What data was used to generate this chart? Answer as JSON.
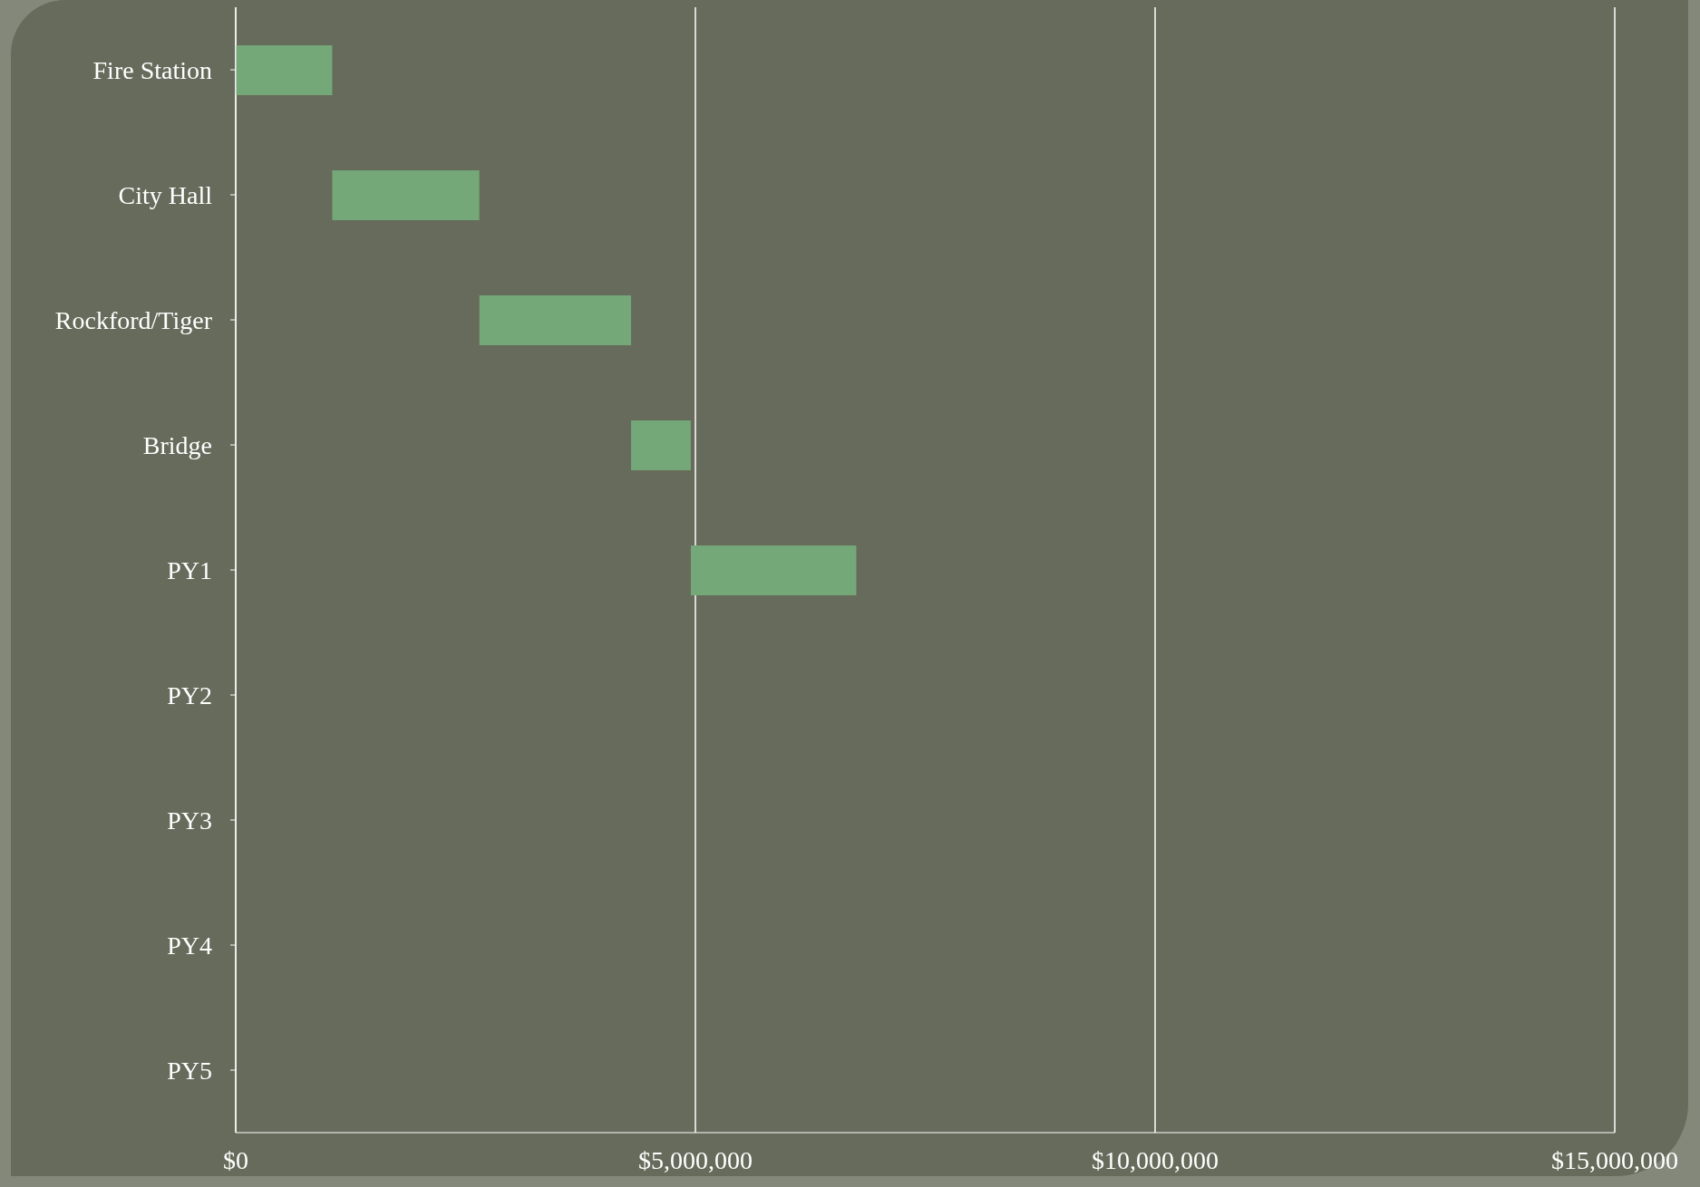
{
  "chart_data": {
    "type": "bar",
    "orientation": "horizontal",
    "categories": [
      "Fire Station",
      "City Hall",
      "Rockford/Tiger",
      "Bridge",
      "PY1",
      "PY2",
      "PY3",
      "PY4",
      "PY5"
    ],
    "base": [
      0,
      1050000,
      2650000,
      4300000,
      4950000,
      null,
      null,
      null,
      null
    ],
    "values": [
      1050000,
      1600000,
      1650000,
      650000,
      1800000,
      null,
      null,
      null,
      null
    ],
    "color": "#74a878",
    "xlim": [
      0,
      15000000
    ],
    "xticks": [
      {
        "value": 0,
        "label": "$0"
      },
      {
        "value": 5000000,
        "label": "$5,000,000"
      },
      {
        "value": 10000000,
        "label": "$10,000,000"
      },
      {
        "value": 15000000,
        "label": "$15,000,000"
      }
    ],
    "grid": "x"
  }
}
